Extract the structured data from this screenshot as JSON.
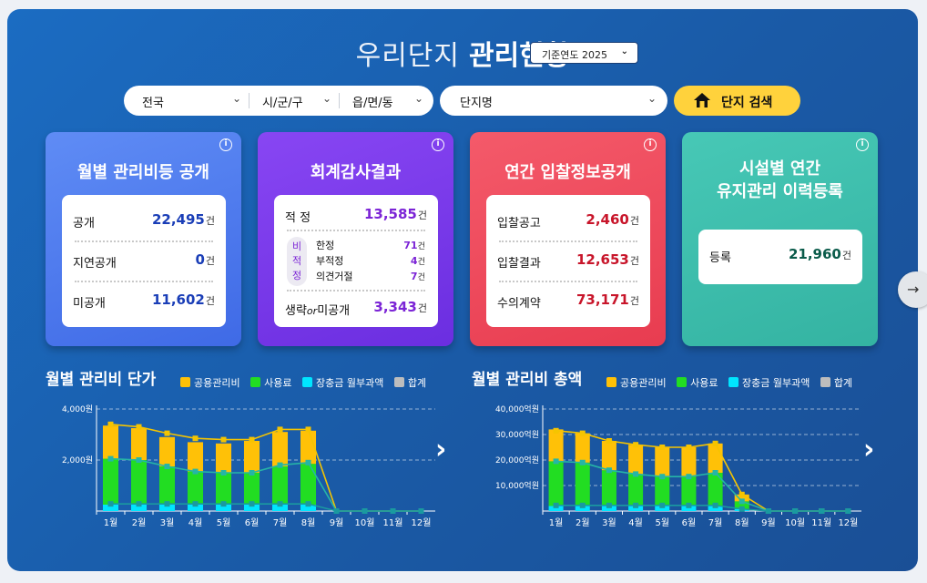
{
  "header": {
    "title_light": "우리단지",
    "title_bold": "관리현황",
    "year_select": "기준연도 2025"
  },
  "search": {
    "region1": "전국",
    "region2": "시/군/구",
    "region3": "읍/면/동",
    "complex_placeholder": "단지명",
    "button_label": "단지 검색"
  },
  "cards": {
    "monthly_fee": {
      "title": "월별 관리비등 공개",
      "rows": [
        {
          "label": "공개",
          "value": "22,495"
        },
        {
          "label": "지연공개",
          "value": "0"
        },
        {
          "label": "미공개",
          "value": "11,602"
        }
      ]
    },
    "audit": {
      "title": "회계감사결과",
      "proper": {
        "label": "적 정",
        "value": "13,585"
      },
      "improper_side": [
        "비",
        "적",
        "정"
      ],
      "improper": [
        {
          "label": "한정",
          "value": "71"
        },
        {
          "label": "부적정",
          "value": "4"
        },
        {
          "label": "의견거절",
          "value": "7"
        }
      ],
      "omitted": {
        "label_a": "생략",
        "label_or": "or",
        "label_b": "미공개",
        "value": "3,343"
      }
    },
    "bid": {
      "title": "연간 입찰정보공개",
      "rows": [
        {
          "label": "입찰공고",
          "value": "2,460"
        },
        {
          "label": "입찰결과",
          "value": "12,653"
        },
        {
          "label": "수의계약",
          "value": "73,171"
        }
      ]
    },
    "facility": {
      "title_line1": "시설별 연간",
      "title_line2": "유지관리 이력등록",
      "rows": [
        {
          "label": "등록",
          "value": "21,960"
        }
      ]
    },
    "unit": "건"
  },
  "legend": [
    "공용관리비",
    "사용료",
    "장충금 월부과액",
    "합계"
  ],
  "colors": {
    "common": "#ffc107",
    "usage": "#22dd22",
    "reserve": "#00e5ff",
    "total": "#bdbdbd",
    "card_blue": "#4d7cf0",
    "card_purple": "#7c3aed",
    "card_red": "#f04a5c",
    "card_teal": "#3dbfae",
    "accent_yellow": "#ffd23c"
  },
  "chart_data": [
    {
      "type": "bar",
      "title": "월별 관리비 단가",
      "categories": [
        "1월",
        "2월",
        "3월",
        "4월",
        "5월",
        "6월",
        "7월",
        "8월",
        "9월",
        "10월",
        "11월",
        "12월"
      ],
      "y_ticks": [
        "4,000원",
        "2,000원"
      ],
      "y_tick_values": [
        4000,
        2000
      ],
      "ylim": [
        0,
        4000
      ],
      "stacked": true,
      "series": [
        {
          "name": "장충금 월부과액",
          "values": [
            250,
            250,
            250,
            250,
            250,
            250,
            250,
            250,
            0,
            0,
            0,
            0
          ]
        },
        {
          "name": "사용료",
          "values": [
            1800,
            1750,
            1500,
            1300,
            1250,
            1250,
            1500,
            1600,
            0,
            0,
            0,
            0
          ]
        },
        {
          "name": "공용관리비",
          "values": [
            1300,
            1250,
            1150,
            1150,
            1150,
            1250,
            1350,
            1300,
            0,
            0,
            0,
            0
          ]
        }
      ],
      "lines": [
        {
          "name": "합계",
          "values": [
            3400,
            3300,
            3050,
            2850,
            2800,
            2800,
            3200,
            3200,
            0,
            0,
            0,
            0
          ]
        },
        {
          "name": "사용료",
          "values": [
            2050,
            2000,
            1750,
            1550,
            1500,
            1500,
            1800,
            1900,
            0,
            0,
            0,
            0
          ]
        },
        {
          "name": "장충금 월부과액",
          "values": [
            280,
            280,
            280,
            280,
            280,
            280,
            280,
            280,
            0,
            0,
            0,
            0
          ]
        }
      ],
      "grid": true
    },
    {
      "type": "bar",
      "title": "월별 관리비 총액",
      "categories": [
        "1월",
        "2월",
        "3월",
        "4월",
        "5월",
        "6월",
        "7월",
        "8월",
        "9월",
        "10월",
        "11월",
        "12월"
      ],
      "y_ticks": [
        "40,000억원",
        "30,000억원",
        "20,000억원",
        "10,000억원"
      ],
      "y_tick_values": [
        40000,
        30000,
        20000,
        10000
      ],
      "ylim": [
        0,
        40000
      ],
      "stacked": true,
      "series": [
        {
          "name": "장충금 월부과액",
          "values": [
            2000,
            2000,
            2000,
            2000,
            2000,
            2000,
            2000,
            800,
            0,
            0,
            0,
            0
          ]
        },
        {
          "name": "사용료",
          "values": [
            17500,
            17000,
            14000,
            12500,
            11500,
            11500,
            13000,
            3000,
            0,
            0,
            0,
            0
          ]
        },
        {
          "name": "공용관리비",
          "values": [
            12500,
            11500,
            11500,
            11500,
            11500,
            11500,
            11500,
            2700,
            0,
            0,
            0,
            0
          ]
        }
      ],
      "lines": [
        {
          "name": "합계",
          "values": [
            31500,
            30500,
            27500,
            26000,
            25000,
            25000,
            26500,
            6500,
            0,
            0,
            0,
            0
          ]
        },
        {
          "name": "사용료",
          "values": [
            19500,
            19000,
            16000,
            14500,
            13500,
            13500,
            15000,
            3800,
            0,
            0,
            0,
            0
          ]
        },
        {
          "name": "장충금 월부과액",
          "values": [
            2200,
            2200,
            2200,
            2200,
            2200,
            2200,
            2200,
            800,
            0,
            0,
            0,
            0
          ]
        }
      ],
      "grid": true
    }
  ]
}
